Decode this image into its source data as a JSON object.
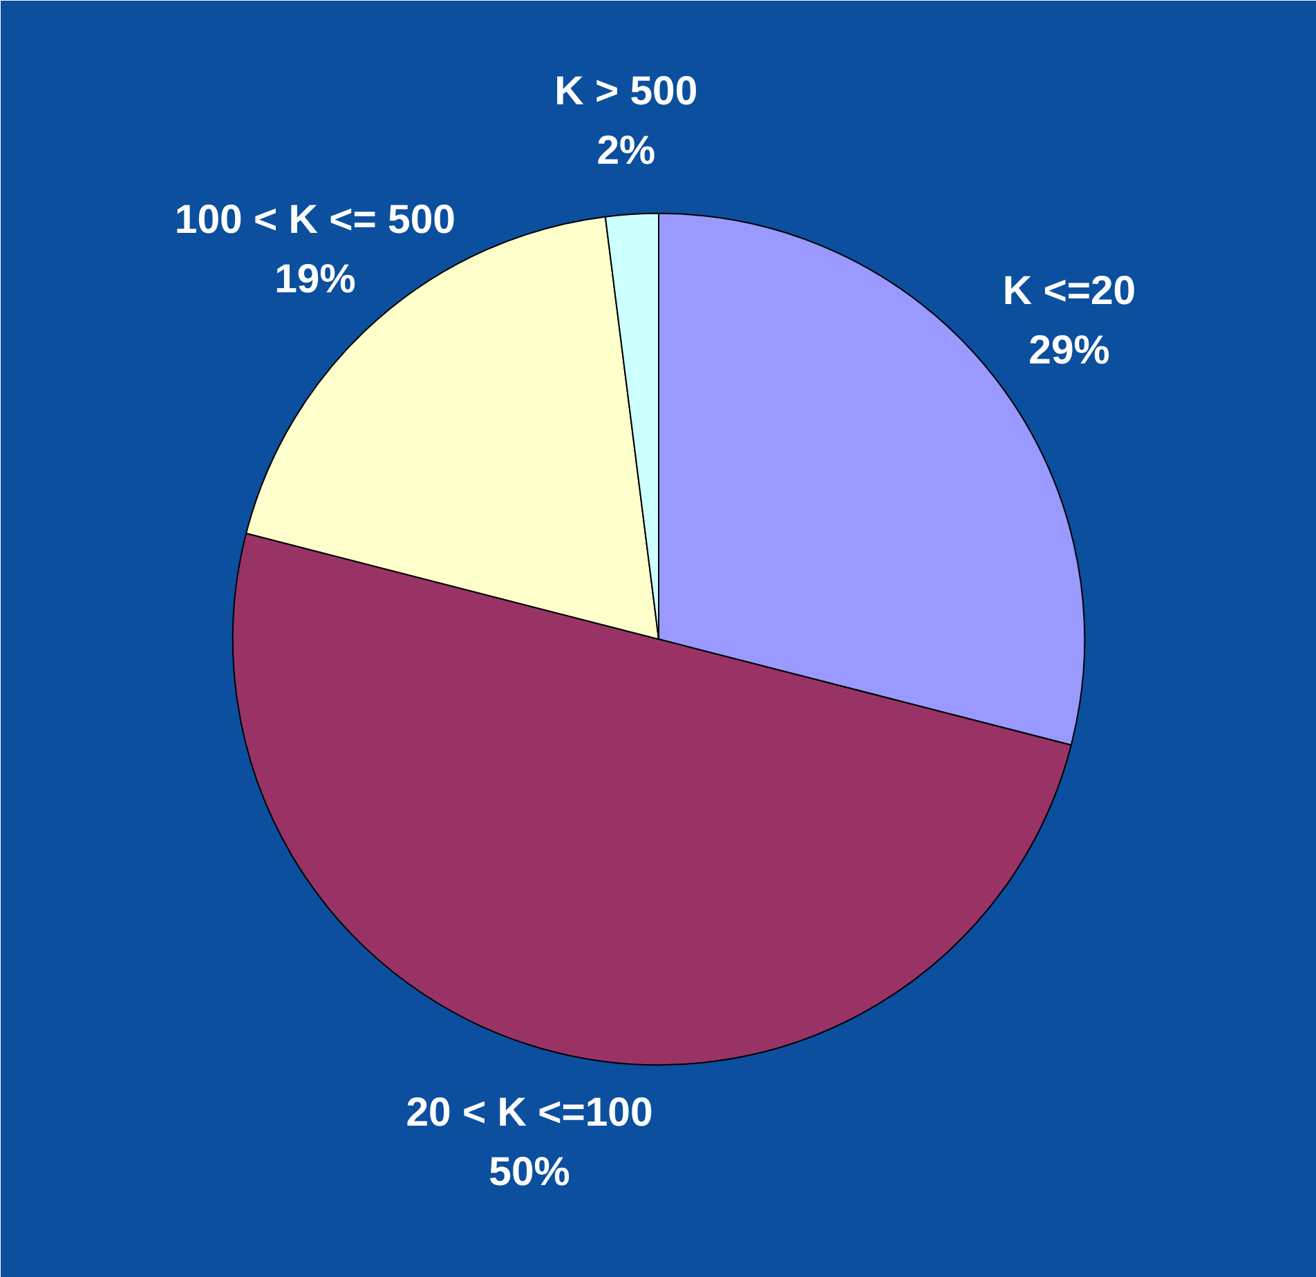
{
  "chart_data": {
    "type": "pie",
    "categories": [
      "K <=20",
      "20 < K <=100",
      "100 < K <= 500",
      "K > 500"
    ],
    "values": [
      29,
      50,
      19,
      2
    ],
    "value_labels": [
      "29%",
      "50%",
      "19%",
      "2%"
    ],
    "colors": [
      "#9999ff",
      "#993366",
      "#ffffcc",
      "#ccffff"
    ]
  }
}
